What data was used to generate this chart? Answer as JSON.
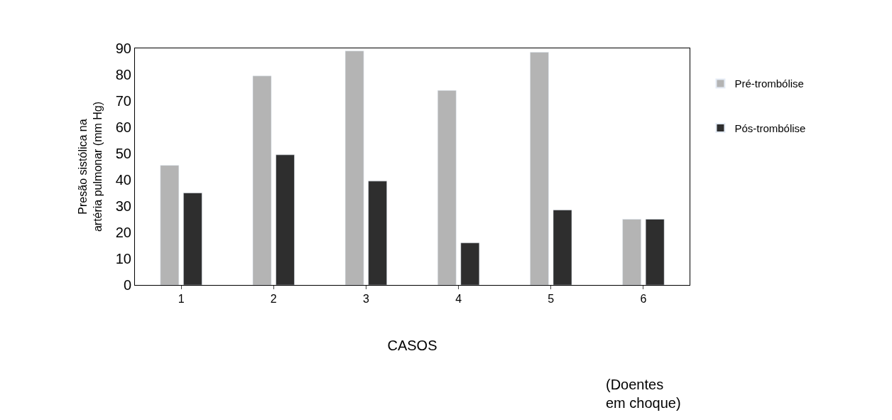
{
  "chart_data": {
    "type": "bar",
    "categories": [
      "1",
      "2",
      "3",
      "4",
      "5",
      "6"
    ],
    "series": [
      {
        "name": "Pré-trombólise",
        "color": "#b4b4b4",
        "values": [
          45.5,
          79.5,
          89,
          74,
          88.5,
          25
        ]
      },
      {
        "name": "Pós-trombólise",
        "color": "#2e2e2e",
        "values": [
          35,
          49.5,
          39.5,
          16,
          28.5,
          25
        ]
      }
    ],
    "xlabel": "CASOS",
    "ylabel": "Presão sistólica na\nartéria pulmonar (mm Hg)",
    "annotations": [
      "(Doentes\nem choque)"
    ],
    "ylim": [
      0,
      90
    ],
    "yticks": [
      0,
      10,
      20,
      30,
      40,
      50,
      60,
      70,
      80,
      90
    ],
    "legend": "right"
  }
}
